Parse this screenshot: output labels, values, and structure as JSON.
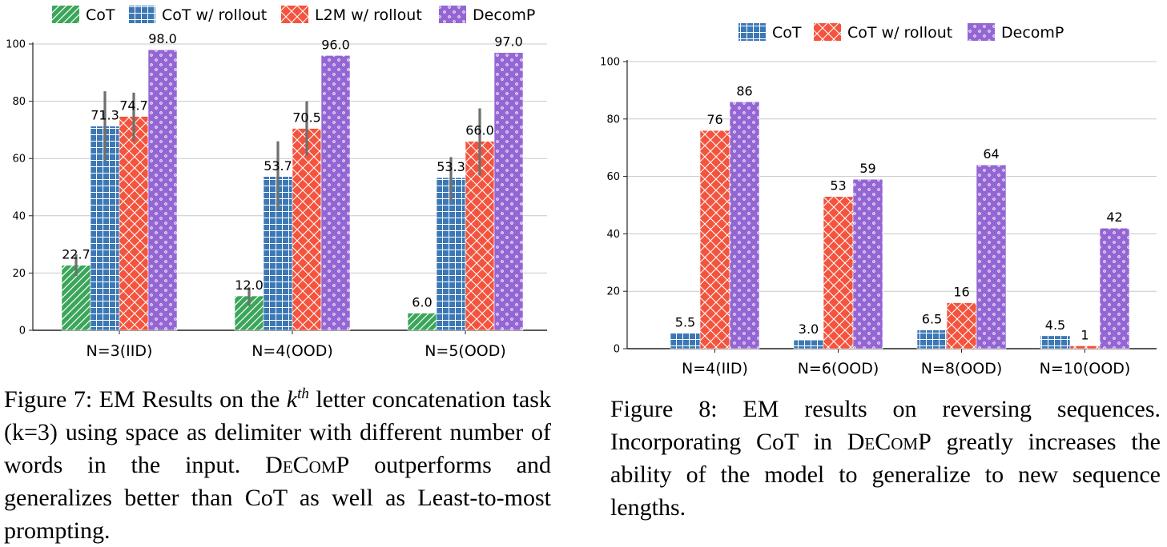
{
  "fig7": {
    "chart_data": {
      "type": "bar",
      "categories": [
        "N=3(IID)",
        "N=4(OOD)",
        "N=5(OOD)"
      ],
      "series": [
        {
          "name": "CoT",
          "values": [
            22.7,
            12.0,
            6.0
          ],
          "labels": [
            "22.7",
            "12.0",
            "6.0"
          ],
          "err": [
            [
              19,
              26.5
            ],
            [
              8.5,
              15
            ],
            [
              null,
              null
            ]
          ]
        },
        {
          "name": "CoT w/ rollout",
          "values": [
            71.3,
            53.7,
            53.3
          ],
          "labels": [
            "71.3",
            "53.7",
            "53.3"
          ],
          "err": [
            [
              59,
              83.5
            ],
            [
              42,
              66
            ],
            [
              45,
              60.5
            ]
          ]
        },
        {
          "name": "L2M w/ rollout",
          "values": [
            74.7,
            70.5,
            66.0
          ],
          "labels": [
            "74.7",
            "70.5",
            "66.0"
          ],
          "err": [
            [
              66,
              83
            ],
            [
              61,
              80
            ],
            [
              54,
              77.5
            ]
          ]
        },
        {
          "name": "DecomP",
          "values": [
            98.0,
            96.0,
            97.0
          ],
          "labels": [
            "98.0",
            "96.0",
            "97.0"
          ],
          "err": [
            [
              null,
              null
            ],
            [
              null,
              null
            ],
            [
              null,
              null
            ]
          ]
        }
      ],
      "yticks": [
        "0",
        "20",
        "40",
        "60",
        "80",
        "100"
      ],
      "ylim": [
        0,
        100
      ],
      "grid": true,
      "legend": "top"
    },
    "caption": {
      "prefix": "Figure 7: EM Results on the ",
      "k": "k",
      "th": "th",
      "body": " letter concatenation task (k=3) using space as delimiter with different number of words in the input. ",
      "decomp": "DeComP",
      "rest": " outperforms and generalizes better than CoT as well as Least-to-most prompting."
    }
  },
  "fig8": {
    "chart_data": {
      "type": "bar",
      "categories": [
        "N=4(IID)",
        "N=6(OOD)",
        "N=8(OOD)",
        "N=10(OOD)"
      ],
      "series": [
        {
          "name": "CoT",
          "values": [
            5.5,
            3.0,
            6.5,
            4.5
          ],
          "labels": [
            "5.5",
            "3.0",
            "6.5",
            "4.5"
          ]
        },
        {
          "name": "CoT w/ rollout",
          "values": [
            76,
            53,
            16,
            1
          ],
          "labels": [
            "76",
            "53",
            "16",
            "1"
          ]
        },
        {
          "name": "DecomP",
          "values": [
            86,
            59,
            64,
            42
          ],
          "labels": [
            "86",
            "59",
            "64",
            "42"
          ]
        }
      ],
      "yticks": [
        "0",
        "20",
        "40",
        "60",
        "80",
        "100"
      ],
      "ylim": [
        0,
        100
      ],
      "grid": true,
      "legend": "top"
    },
    "caption": {
      "prefix": "Figure 8: EM results on reversing sequences. Incorporating CoT in ",
      "decomp": "DeComP",
      "rest": " greatly increases the ability of the model to generalize to new sequence lengths."
    }
  },
  "colors": {
    "green": "#3aa65a",
    "blue": "#3c78b5",
    "red": "#f4533d",
    "purple": "#9466d4",
    "grid": "#c8c8c8",
    "errbar": "#6f6f6f"
  }
}
